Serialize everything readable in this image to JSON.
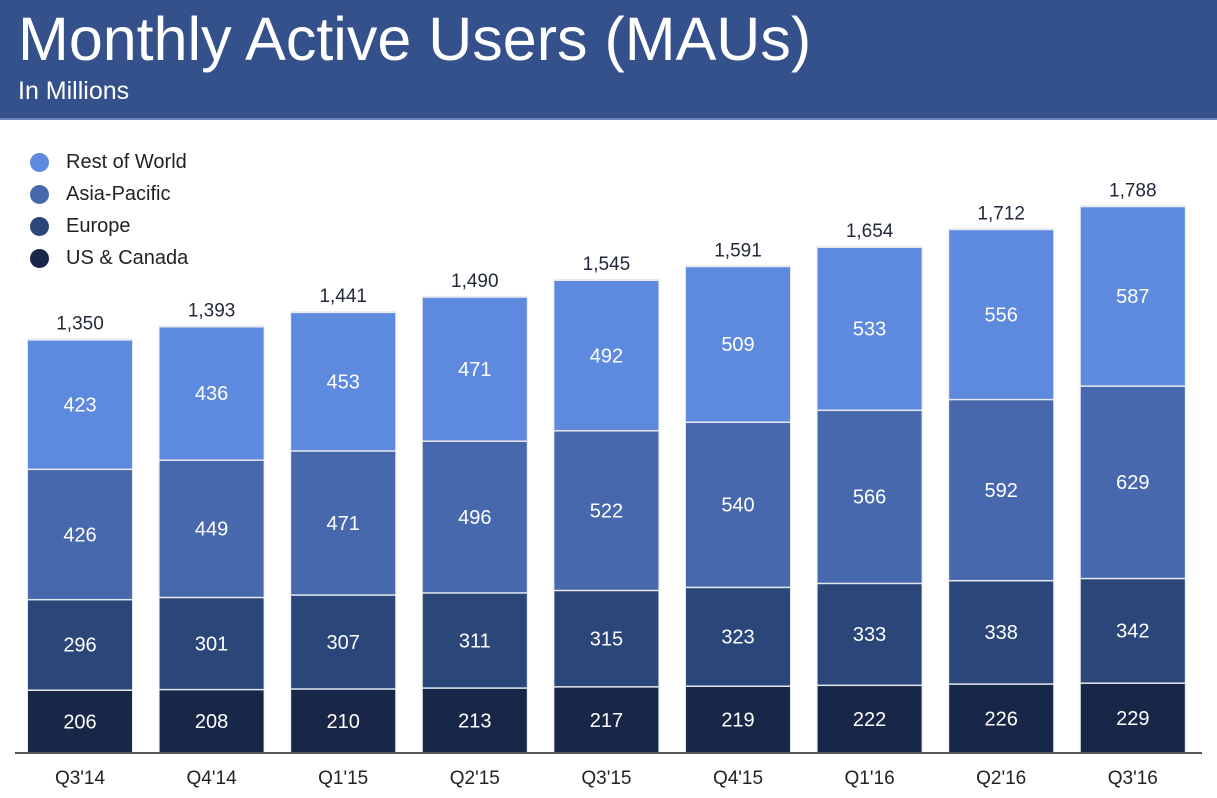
{
  "header": {
    "title": "Monthly Active Users (MAUs)",
    "subtitle": "In Millions"
  },
  "colors": {
    "header_bg": "#34518b",
    "Rest of World": "#5d89df",
    "Asia-Pacific": "#4868ae",
    "Europe": "#2b4678",
    "US & Canada": "#182748"
  },
  "chart_data": {
    "type": "bar",
    "stacked": true,
    "title": "Monthly Active Users (MAUs)",
    "subtitle": "In Millions",
    "xlabel": "",
    "ylabel": "",
    "ylim": [
      0,
      1788
    ],
    "grid": false,
    "legend_position": "top-left",
    "categories": [
      "Q3'14",
      "Q4'14",
      "Q1'15",
      "Q2'15",
      "Q3'15",
      "Q4'15",
      "Q1'16",
      "Q2'16",
      "Q3'16"
    ],
    "series": [
      {
        "name": "US & Canada",
        "values": [
          206,
          208,
          210,
          213,
          217,
          219,
          222,
          226,
          229
        ]
      },
      {
        "name": "Europe",
        "values": [
          296,
          301,
          307,
          311,
          315,
          323,
          333,
          338,
          342
        ]
      },
      {
        "name": "Asia-Pacific",
        "values": [
          426,
          449,
          471,
          496,
          522,
          540,
          566,
          592,
          629
        ]
      },
      {
        "name": "Rest of World",
        "values": [
          423,
          436,
          453,
          471,
          492,
          509,
          533,
          556,
          587
        ]
      }
    ],
    "totals": [
      "1,350",
      "1,393",
      "1,441",
      "1,490",
      "1,545",
      "1,591",
      "1,654",
      "1,712",
      "1,788"
    ],
    "legend": [
      "Rest of World",
      "Asia-Pacific",
      "Europe",
      "US & Canada"
    ]
  }
}
